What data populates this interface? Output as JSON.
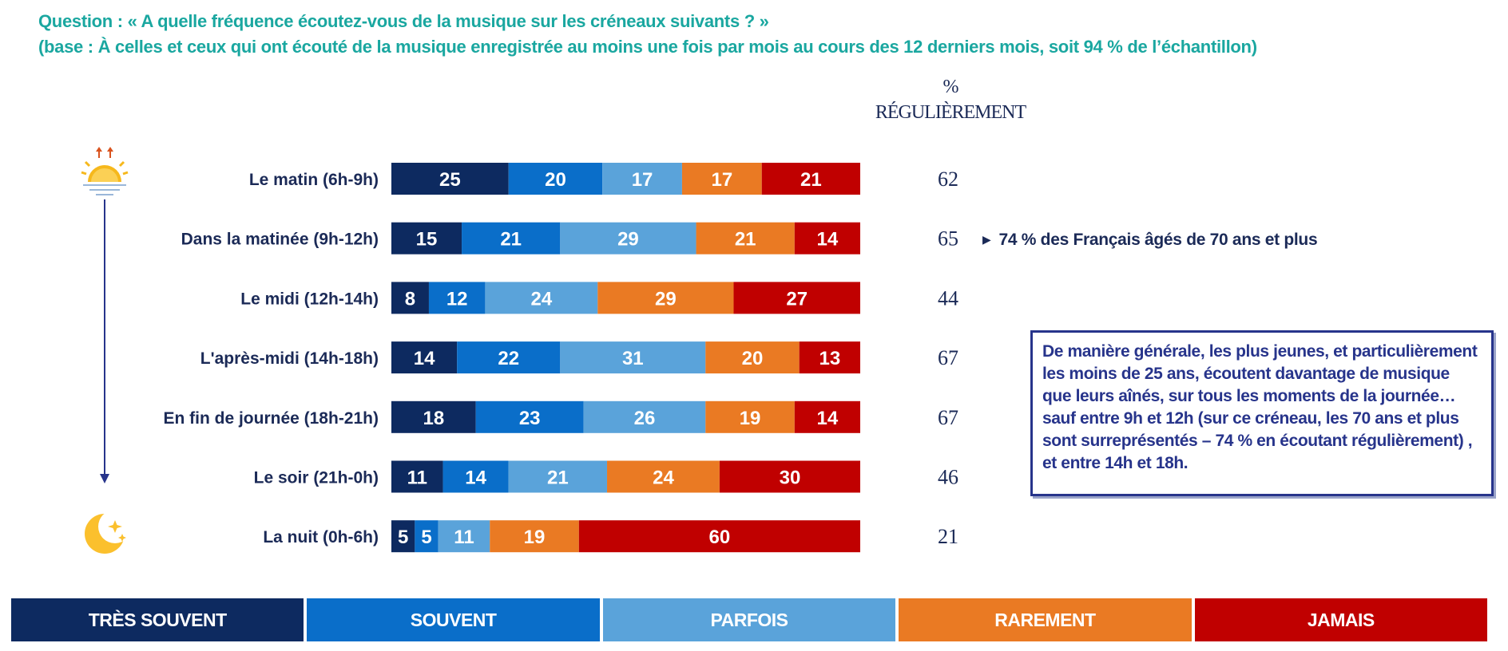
{
  "header": {
    "question": "Question : « A quelle fréquence écoutez-vous de la musique sur les créneaux suivants ? »",
    "base": "(base : À celles et ceux qui ont écouté de la musique enregistrée au moins une fois par mois au cours des 12 derniers mois, soit 94 % de l’échantillon)"
  },
  "pct_header": {
    "sign": "%",
    "word": "RÉGULIÈREMENT"
  },
  "colors": {
    "tres_souvent": "#0d2a60",
    "souvent": "#0a6ec9",
    "parfois": "#5aa3da",
    "rarement": "#ea7a23",
    "jamais": "#c00000",
    "question_text": "#1aa7a0",
    "navy_text": "#1b2a57"
  },
  "chart_data": {
    "type": "bar",
    "orientation": "horizontal",
    "stacked": true,
    "categories": [
      "Le matin (6h-9h)",
      "Dans la matinée (9h-12h)",
      "Le midi (12h-14h)",
      "L'après-midi (14h-18h)",
      "En fin de journée (18h-21h)",
      "Le soir (21h-0h)",
      "La nuit (0h-6h)"
    ],
    "series": [
      {
        "name": "TRÈS SOUVENT",
        "values": [
          25,
          15,
          8,
          14,
          18,
          11,
          5
        ]
      },
      {
        "name": "SOUVENT",
        "values": [
          20,
          21,
          12,
          22,
          23,
          14,
          5
        ]
      },
      {
        "name": "PARFOIS",
        "values": [
          17,
          29,
          24,
          31,
          26,
          21,
          11
        ]
      },
      {
        "name": "RAREMENT",
        "values": [
          17,
          21,
          29,
          20,
          19,
          24,
          19
        ]
      },
      {
        "name": "JAMAIS",
        "values": [
          21,
          14,
          27,
          13,
          14,
          30,
          60
        ]
      }
    ],
    "regulierement": [
      62,
      65,
      44,
      67,
      67,
      46,
      21
    ],
    "xlim": [
      0,
      100
    ],
    "legend_position": "bottom"
  },
  "annotation": "74 % des Français âgés de 70 ans et plus",
  "note_box": "De manière générale, les plus jeunes, et particulièrement les moins de 25 ans, écoutent davantage de musique que leurs aînés, sur tous les moments de la journée… sauf entre 9h et 12h (sur ce créneau, les 70 ans et plus sont surreprésentés – 74 % en écoutant régulièrement) , et entre 14h et 18h.",
  "icons": {
    "top": "sunrise-icon",
    "bottom": "moon-stars-icon"
  }
}
